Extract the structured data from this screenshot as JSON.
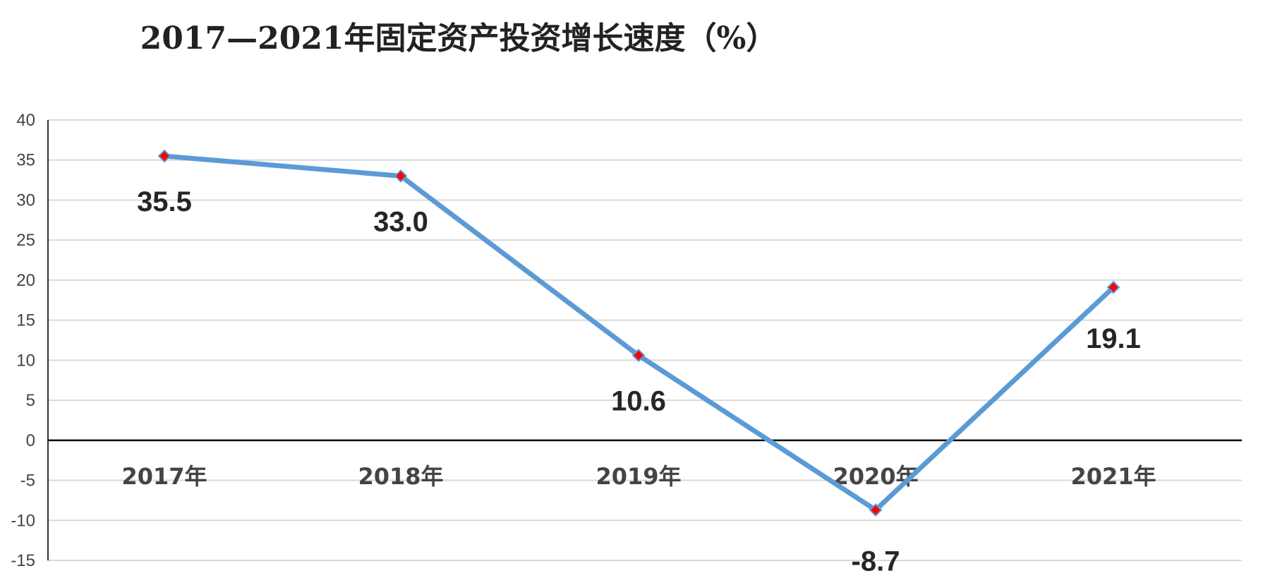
{
  "chart_data": {
    "type": "line",
    "title": "2017—2021年固定资产投资增长速度（%）",
    "xlabel": "",
    "ylabel": "",
    "categories": [
      "2017年",
      "2018年",
      "2019年",
      "2020年",
      "2021年"
    ],
    "series": [
      {
        "values": [
          35.5,
          33.0,
          10.6,
          -8.7,
          19.1
        ]
      }
    ],
    "data_labels": [
      "35.5",
      "33.0",
      "10.6",
      "-8.7",
      "19.1"
    ],
    "ylim": [
      -15,
      40
    ],
    "yticks": [
      40,
      35,
      30,
      25,
      20,
      15,
      10,
      5,
      0,
      -5,
      -10,
      -15
    ],
    "grid": true,
    "legend": "none",
    "colors": {
      "line": "#5b9bd5",
      "marker": "#ff0000",
      "grid": "#d9d9d9",
      "zero_axis": "#000000"
    }
  }
}
